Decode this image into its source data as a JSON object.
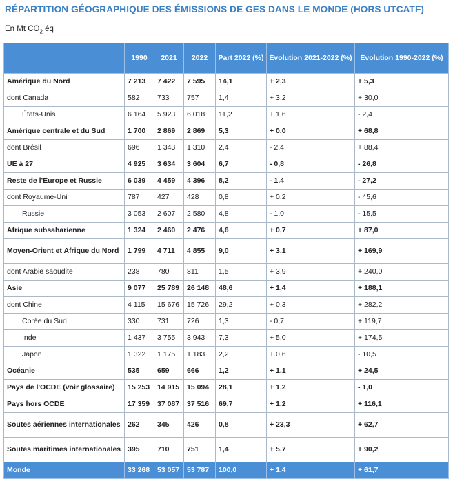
{
  "title": "RÉPARTITION GÉOGRAPHIQUE DES ÉMISSIONS DE GES DANS LE MONDE (HORS UTCATF)",
  "unit_prefix": "En Mt CO",
  "unit_sub": "2",
  "unit_suffix": " éq",
  "headers": [
    "",
    "1990",
    "2021",
    "2022",
    "Part 2022 (%)",
    "Évolution 2021-2022 (%)",
    "Évolution 1990-2022 (%)"
  ],
  "rows": [
    {
      "label": "Amérique du Nord",
      "v1990": "7 213",
      "v2021": "7 422",
      "v2022": "7 595",
      "part": "14,1",
      "evo1": "+ 2,3",
      "evo2": "+ 5,3"
    },
    {
      "label": "dont Canada",
      "v1990": "582",
      "v2021": "733",
      "v2022": "757",
      "part": "1,4",
      "evo1": "+ 3,2",
      "evo2": "+ 30,0"
    },
    {
      "label": "États-Unis",
      "v1990": "6 164",
      "v2021": "5 923",
      "v2022": "6 018",
      "part": "11,2",
      "evo1": "+ 1,6",
      "evo2": "- 2,4"
    },
    {
      "label": "Amérique centrale et du Sud",
      "v1990": "1 700",
      "v2021": "2 869",
      "v2022": "2 869",
      "part": "5,3",
      "evo1": "+ 0,0",
      "evo2": "+ 68,8"
    },
    {
      "label": "dont Brésil",
      "v1990": "696",
      "v2021": "1 343",
      "v2022": "1 310",
      "part": "2,4",
      "evo1": "- 2,4",
      "evo2": "+ 88,4"
    },
    {
      "label": "UE à 27",
      "v1990": "4 925",
      "v2021": "3 634",
      "v2022": "3 604",
      "part": "6,7",
      "evo1": "- 0,8",
      "evo2": "- 26,8"
    },
    {
      "label": "Reste de l'Europe et Russie",
      "v1990": "6 039",
      "v2021": "4 459",
      "v2022": "4 396",
      "part": "8,2",
      "evo1": "- 1,4",
      "evo2": "- 27,2"
    },
    {
      "label": "dont Royaume-Uni",
      "v1990": "787",
      "v2021": "427",
      "v2022": "428",
      "part": "0,8",
      "evo1": "+ 0,2",
      "evo2": "- 45,6"
    },
    {
      "label": "Russie",
      "v1990": "3 053",
      "v2021": "2 607",
      "v2022": "2 580",
      "part": "4,8",
      "evo1": "- 1,0",
      "evo2": "- 15,5"
    },
    {
      "label": "Afrique subsaharienne",
      "v1990": "1 324",
      "v2021": "2 460",
      "v2022": "2 476",
      "part": "4,6",
      "evo1": "+ 0,7",
      "evo2": "+ 87,0"
    },
    {
      "label": "Moyen-Orient et Afrique du Nord",
      "v1990": "1 799",
      "v2021": "4 711",
      "v2022": "4 855",
      "part": "9,0",
      "evo1": "+ 3,1",
      "evo2": "+ 169,9"
    },
    {
      "label": "dont Arabie saoudite",
      "v1990": "238",
      "v2021": "780",
      "v2022": "811",
      "part": "1,5",
      "evo1": "+ 3,9",
      "evo2": "+ 240,0"
    },
    {
      "label": "Asie",
      "v1990": "9 077",
      "v2021": "25 789",
      "v2022": "26 148",
      "part": "48,6",
      "evo1": "+ 1,4",
      "evo2": "+ 188,1"
    },
    {
      "label": "dont Chine",
      "v1990": "4 115",
      "v2021": "15 676",
      "v2022": "15 726",
      "part": "29,2",
      "evo1": "+ 0,3",
      "evo2": "+ 282,2"
    },
    {
      "label": "Corée du Sud",
      "v1990": "330",
      "v2021": "731",
      "v2022": "726",
      "part": "1,3",
      "evo1": "- 0,7",
      "evo2": "+ 119,7"
    },
    {
      "label": "Inde",
      "v1990": "1 437",
      "v2021": "3 755",
      "v2022": "3 943",
      "part": "7,3",
      "evo1": "+ 5,0",
      "evo2": "+ 174,5"
    },
    {
      "label": "Japon",
      "v1990": "1 322",
      "v2021": "1 175",
      "v2022": "1 183",
      "part": "2,2",
      "evo1": "+ 0,6",
      "evo2": "- 10,5"
    },
    {
      "label": "Océanie",
      "v1990": "535",
      "v2021": "659",
      "v2022": "666",
      "part": "1,2",
      "evo1": "+ 1,1",
      "evo2": "+ 24,5"
    },
    {
      "label": "Pays de l'OCDE (voir glossaire)",
      "v1990": "15 253",
      "v2021": "14 915",
      "v2022": "15 094",
      "part": "28,1",
      "evo1": "+ 1,2",
      "evo2": "- 1,0"
    },
    {
      "label": "Pays hors OCDE",
      "v1990": "17 359",
      "v2021": "37 087",
      "v2022": "37 516",
      "part": "69,7",
      "evo1": "+ 1,2",
      "evo2": "+ 116,1"
    },
    {
      "label": "Soutes aériennes internationales",
      "v1990": "262",
      "v2021": "345",
      "v2022": "426",
      "part": "0,8",
      "evo1": "+ 23,3",
      "evo2": "+ 62,7"
    },
    {
      "label": "Soutes maritimes internationales",
      "v1990": "395",
      "v2021": "710",
      "v2022": "751",
      "part": "1,4",
      "evo1": "+ 5,7",
      "evo2": "+ 90,2"
    },
    {
      "label": "Monde",
      "v1990": "33 268",
      "v2021": "53 057",
      "v2022": "53 787",
      "part": "100,0",
      "evo1": "+ 1,4",
      "evo2": "+ 61,7"
    }
  ]
}
